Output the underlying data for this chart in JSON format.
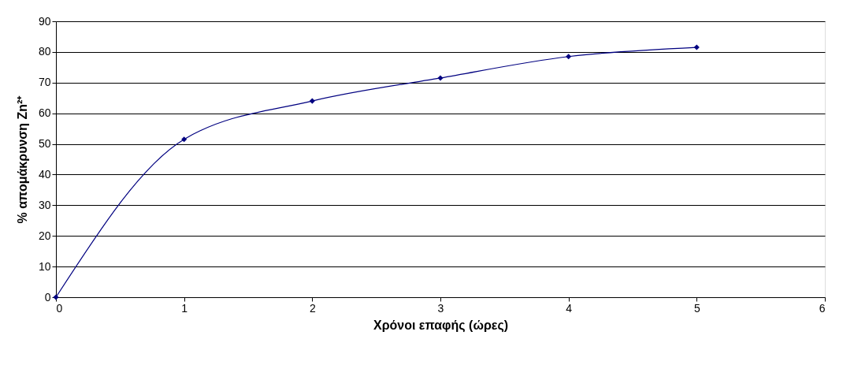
{
  "chart_data": {
    "type": "line",
    "xlabel": "Χρόνοι επαφής (ώρες)",
    "ylabel": "% απομάκρυνση Zn²⁺",
    "x": [
      0,
      1,
      2,
      3,
      4,
      5
    ],
    "series": [
      {
        "color": "#000080",
        "values": [
          0,
          51.5,
          64,
          71.5,
          78.5,
          81.5
        ]
      }
    ],
    "xlim": [
      0,
      6
    ],
    "xticks": [
      0,
      1,
      2,
      3,
      4,
      5,
      6
    ],
    "ylim": [
      0,
      90
    ],
    "yticks": [
      0,
      10,
      20,
      30,
      40,
      50,
      60,
      70,
      80,
      90
    ],
    "grid": "y",
    "marker": "diamond",
    "line_style": "solid",
    "legend": false
  }
}
